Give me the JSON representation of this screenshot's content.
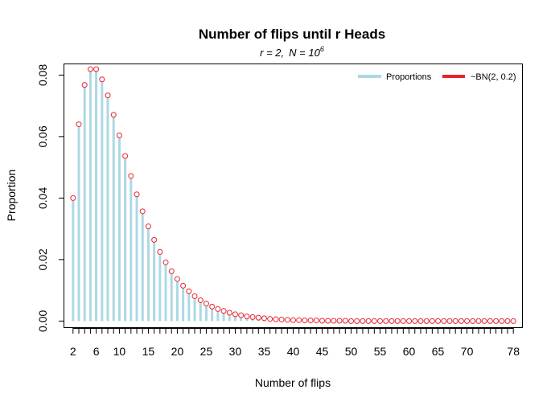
{
  "chart_data": {
    "type": "bar",
    "title": "Number of flips until r Heads",
    "subtitle": {
      "r_part": "r = 2,",
      "n_part": "N = 10",
      "n_exponent": "6"
    },
    "xlabel": "Number of flips",
    "ylabel": "Proportion",
    "xlim": [
      0.5,
      79.5
    ],
    "ylim": [
      -0.002,
      0.0835
    ],
    "x_ticks": [
      2,
      3,
      4,
      5,
      6,
      7,
      8,
      9,
      10,
      11,
      12,
      13,
      14,
      15,
      16,
      17,
      18,
      19,
      20,
      21,
      22,
      23,
      24,
      25,
      26,
      27,
      28,
      29,
      30,
      31,
      32,
      33,
      34,
      35,
      36,
      37,
      38,
      39,
      40,
      41,
      42,
      43,
      44,
      45,
      46,
      47,
      48,
      49,
      50,
      51,
      52,
      53,
      54,
      55,
      56,
      57,
      58,
      59,
      60,
      61,
      62,
      63,
      64,
      65,
      66,
      67,
      68,
      69,
      70,
      71,
      72,
      73,
      74,
      75,
      76,
      77,
      78
    ],
    "x_tick_labels": [
      {
        "x": 2,
        "label": "2"
      },
      {
        "x": 6,
        "label": "6"
      },
      {
        "x": 10,
        "label": "10"
      },
      {
        "x": 15,
        "label": "15"
      },
      {
        "x": 20,
        "label": "20"
      },
      {
        "x": 25,
        "label": "25"
      },
      {
        "x": 30,
        "label": "30"
      },
      {
        "x": 35,
        "label": "35"
      },
      {
        "x": 40,
        "label": "40"
      },
      {
        "x": 45,
        "label": "45"
      },
      {
        "x": 50,
        "label": "50"
      },
      {
        "x": 55,
        "label": "55"
      },
      {
        "x": 60,
        "label": "60"
      },
      {
        "x": 65,
        "label": "65"
      },
      {
        "x": 70,
        "label": "70"
      },
      {
        "x": 78,
        "label": "78"
      }
    ],
    "y_ticks": [
      {
        "value": 0.0,
        "label": "0.00"
      },
      {
        "value": 0.02,
        "label": "0.02"
      },
      {
        "value": 0.04,
        "label": "0.04"
      },
      {
        "value": 0.06,
        "label": "0.06"
      },
      {
        "value": 0.08,
        "label": "0.08"
      }
    ],
    "x": [
      2,
      3,
      4,
      5,
      6,
      7,
      8,
      9,
      10,
      11,
      12,
      13,
      14,
      15,
      16,
      17,
      18,
      19,
      20,
      21,
      22,
      23,
      24,
      25,
      26,
      27,
      28,
      29,
      30,
      31,
      32,
      33,
      34,
      35,
      36,
      37,
      38,
      39,
      40,
      41,
      42,
      43,
      44,
      45,
      46,
      47,
      48,
      49,
      50,
      51,
      52,
      53,
      54,
      55,
      56,
      57,
      58,
      59,
      60,
      61,
      62,
      63,
      64,
      65,
      66,
      67,
      68,
      69,
      70,
      71,
      72,
      73,
      74,
      75,
      76,
      77,
      78
    ],
    "series": [
      {
        "name": "Proportions",
        "kind": "vertical-lines",
        "color": "#add8e6",
        "values": [
          0.04,
          0.064,
          0.0768,
          0.08192,
          0.08192,
          0.0786,
          0.0734,
          0.0671,
          0.0604,
          0.0537,
          0.0472,
          0.0412,
          0.0357,
          0.0308,
          0.0264,
          0.0225,
          0.0191,
          0.0162,
          0.0137,
          0.0115,
          0.0097,
          0.0081,
          0.0068,
          0.0057,
          0.0047,
          0.0039,
          0.0033,
          0.0027,
          0.0022,
          0.0019,
          0.0015,
          0.0013,
          0.0011,
          0.0009,
          0.0007,
          0.0006,
          0.0005,
          0.0004,
          0.0003,
          0.0003,
          0.0002,
          0.0002,
          0.0002,
          0.0001,
          0.0001,
          0.0001,
          0.0001,
          0.0001,
          0.0,
          0.0,
          0.0,
          0.0,
          0.0,
          0.0,
          0.0,
          0.0,
          0.0,
          0.0,
          0.0,
          0.0,
          0.0,
          0.0,
          0.0,
          0.0,
          0.0,
          0.0,
          0.0,
          0.0,
          0.0,
          0.0,
          0.0,
          0.0,
          0.0,
          0.0,
          0.0,
          0.0,
          0.0
        ]
      },
      {
        "name": "~BN(2, 0.2)",
        "kind": "points",
        "color": "#e8252b",
        "values": [
          0.04,
          0.064,
          0.0768,
          0.08192,
          0.08192,
          0.0786,
          0.0734,
          0.0671,
          0.0604,
          0.0537,
          0.0472,
          0.0412,
          0.0357,
          0.0308,
          0.0264,
          0.0225,
          0.0191,
          0.0162,
          0.0137,
          0.0115,
          0.0097,
          0.0081,
          0.0068,
          0.0057,
          0.0047,
          0.0039,
          0.0033,
          0.0027,
          0.0022,
          0.0019,
          0.0015,
          0.0013,
          0.0011,
          0.0009,
          0.0007,
          0.0006,
          0.0005,
          0.0004,
          0.0003,
          0.0003,
          0.0002,
          0.0002,
          0.0002,
          0.0001,
          0.0001,
          0.0001,
          0.0001,
          0.0001,
          0.0,
          0.0,
          0.0,
          0.0,
          0.0,
          0.0,
          0.0,
          0.0,
          0.0,
          0.0,
          0.0,
          0.0,
          0.0,
          0.0,
          0.0,
          0.0,
          0.0,
          0.0,
          0.0,
          0.0,
          0.0,
          0.0,
          0.0,
          0.0,
          0.0,
          0.0,
          0.0,
          0.0,
          0.0
        ]
      }
    ],
    "legend": {
      "placement": "top-right",
      "entries": [
        {
          "label": "Proportions",
          "color": "#add8e6"
        },
        {
          "label": "~BN(2, 0.2)",
          "color": "#e8252b"
        }
      ]
    },
    "grid": false
  }
}
